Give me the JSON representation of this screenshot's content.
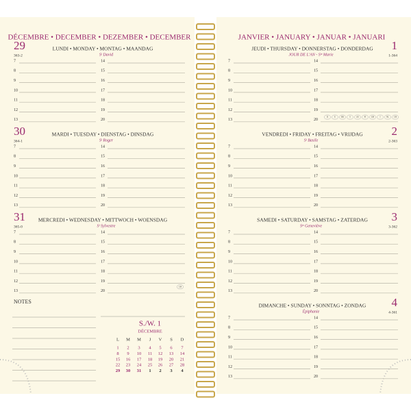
{
  "hours": [
    "7",
    "8",
    "9",
    "10",
    "11",
    "12",
    "13",
    "14",
    "15",
    "16",
    "17",
    "18",
    "19",
    "20"
  ],
  "left_page": {
    "month": "DÉCEMBRE • DECEMBER • DEZEMBER • DECEMBER",
    "days": [
      {
        "number": "29",
        "day_of_year": "363-2",
        "weekday": "LUNDI • MONDAY • MONTAG • MAANDAG",
        "saint": "Sᵗ David"
      },
      {
        "number": "30",
        "day_of_year": "364-1",
        "weekday": "MARDI • TUESDAY • DIENSTAG • DINSDAG",
        "saint": "Sᵗ Roger"
      },
      {
        "number": "31",
        "day_of_year": "365-0",
        "weekday": "MERCREDI • WEDNESDAY • MITTWOCH • WOENSDAG",
        "saint": "Sᵗ Sylvestre",
        "tags": [
          "CH"
        ]
      }
    ],
    "notes": "NOTES",
    "mini_calendar": {
      "week": "S./W. 1",
      "month": "DÉCEMBRE",
      "headers": [
        "L",
        "M",
        "M",
        "J",
        "V",
        "S",
        "D"
      ],
      "rows": [
        [
          "1",
          "2",
          "3",
          "4",
          "5",
          "6",
          "7"
        ],
        [
          "8",
          "9",
          "10",
          "11",
          "12",
          "13",
          "14"
        ],
        [
          "15",
          "16",
          "17",
          "18",
          "19",
          "20",
          "21"
        ],
        [
          "22",
          "23",
          "24",
          "25",
          "26",
          "27",
          "28"
        ],
        [
          "29",
          "30",
          "31",
          "1",
          "2",
          "3",
          "4"
        ]
      ]
    }
  },
  "right_page": {
    "month": "JANVIER • JANUARY • JANUAR • JANUARI",
    "days": [
      {
        "number": "1",
        "day_of_year": "1-364",
        "weekday": "JEUDI • THURSDAY • DONNERSTAG • DONDERDAG",
        "saint": "JOUR DE L'AN - Sᵗᵉ Marie",
        "tags": [
          "D",
          "E",
          "DK",
          "S",
          "AS",
          "FI",
          "GB",
          "I",
          "NL",
          "CH"
        ]
      },
      {
        "number": "2",
        "day_of_year": "2-363",
        "weekday": "VENDREDI • FRIDAY • FREITAG • VRIJDAG",
        "saint": "Sᵗ Basile"
      },
      {
        "number": "3",
        "day_of_year": "3-362",
        "weekday": "SAMEDI • SATURDAY • SAMSTAG • ZATERDAG",
        "saint": "Sᵗᵉ Geneviève"
      },
      {
        "number": "4",
        "day_of_year": "4-361",
        "weekday": "DIMANCHE • SUNDAY • SONNTAG • ZONDAG",
        "saint": "Épiphanie"
      }
    ]
  }
}
